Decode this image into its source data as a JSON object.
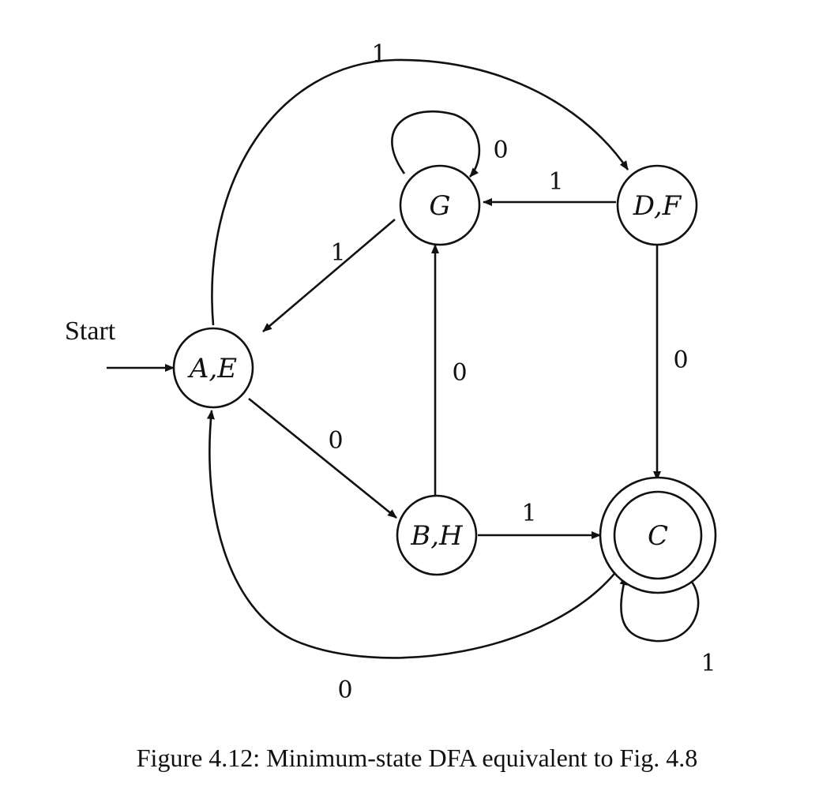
{
  "start_label": "Start",
  "states": {
    "AE": "A,E",
    "G": "G",
    "DF": "D,F",
    "BH": "B,H",
    "C": "C"
  },
  "transitions": {
    "AE_DF": "1",
    "G_self": "0",
    "DF_G": "1",
    "G_AE": "1",
    "DF_C": "0",
    "BH_G": "0",
    "AE_BH": "0",
    "BH_C": "1",
    "C_self": "1",
    "C_AE": "0"
  },
  "accepting_state": "C",
  "caption": "Figure 4.12: Minimum-state DFA equivalent to Fig. 4.8"
}
